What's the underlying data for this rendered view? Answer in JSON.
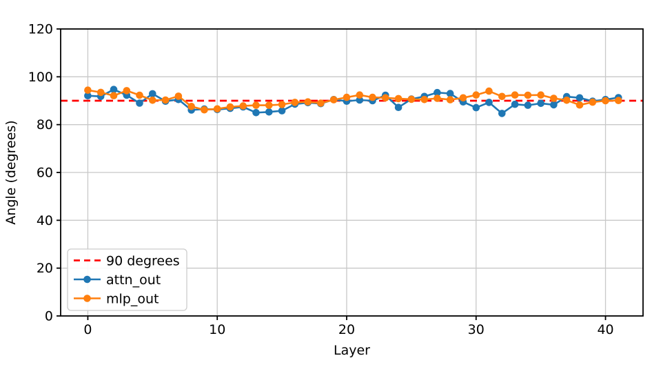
{
  "chart_data": {
    "type": "line",
    "title": "",
    "xlabel": "Layer",
    "ylabel": "Angle (degrees)",
    "xlim": [
      -2.1,
      42.9
    ],
    "ylim": [
      0,
      120
    ],
    "xticks": [
      0,
      10,
      20,
      30,
      40
    ],
    "yticks": [
      0,
      20,
      40,
      60,
      80,
      100,
      120
    ],
    "grid": true,
    "grid_color": "#c8c8c8",
    "x": [
      0,
      1,
      2,
      3,
      4,
      5,
      6,
      7,
      8,
      9,
      10,
      11,
      12,
      13,
      14,
      15,
      16,
      17,
      18,
      19,
      20,
      21,
      22,
      23,
      24,
      25,
      26,
      27,
      28,
      29,
      30,
      31,
      32,
      33,
      34,
      35,
      36,
      37,
      38,
      39,
      40,
      41
    ],
    "series": [
      {
        "name": "attn_out",
        "color": "#1f77b4",
        "marker": "circle",
        "values": [
          92.1,
          91.8,
          94.7,
          92.3,
          89.0,
          92.9,
          89.8,
          90.5,
          86.1,
          86.5,
          86.3,
          86.8,
          87.4,
          85.0,
          85.3,
          85.8,
          88.6,
          89.2,
          88.8,
          90.5,
          89.8,
          90.3,
          90.0,
          92.3,
          87.2,
          90.7,
          91.8,
          93.4,
          93.0,
          89.5,
          87.1,
          89.3,
          84.7,
          88.5,
          88.1,
          88.9,
          88.3,
          91.7,
          91.2,
          89.8,
          90.5,
          91.3
        ]
      },
      {
        "name": "mlp_out",
        "color": "#ff7f0e",
        "marker": "circle",
        "values": [
          94.4,
          93.5,
          92.1,
          94.2,
          92.3,
          90.2,
          90.3,
          91.9,
          87.6,
          86.2,
          86.6,
          87.4,
          87.8,
          88.1,
          88.1,
          88.4,
          89.3,
          89.5,
          89.0,
          90.4,
          91.4,
          92.4,
          91.4,
          91.2,
          90.9,
          90.6,
          90.5,
          91.0,
          90.4,
          91.2,
          92.4,
          94.0,
          91.8,
          92.4,
          92.3,
          92.4,
          91.0,
          90.2,
          88.2,
          89.4,
          90.0,
          90.1
        ]
      }
    ],
    "reference_line": {
      "label": "90 degrees",
      "value": 90,
      "color": "#ff0000",
      "style": "dashed"
    },
    "legend": {
      "position": "lower left",
      "entries": [
        "90 degrees",
        "attn_out",
        "mlp_out"
      ]
    }
  }
}
